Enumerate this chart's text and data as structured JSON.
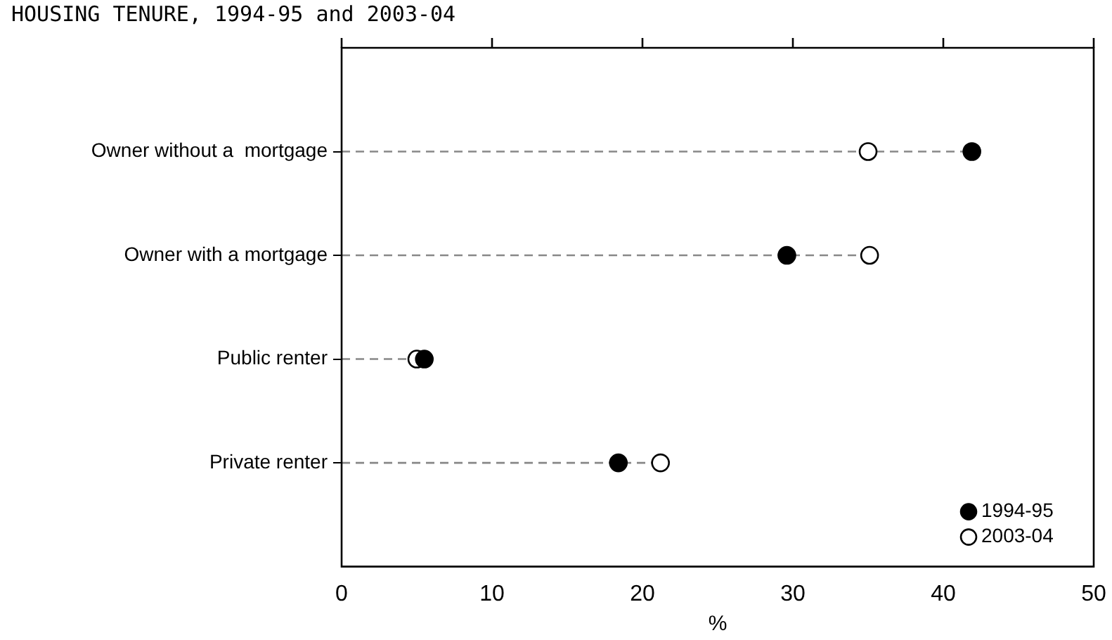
{
  "chart_data": {
    "type": "lollipop",
    "orientation": "horizontal",
    "title": "HOUSING TENURE, 1994-95 and 2003-04",
    "xlabel": "%",
    "categories": [
      "Owner without a  mortgage",
      "Owner with a mortgage",
      "Public renter",
      "Private renter"
    ],
    "series": [
      {
        "name": "1994-95",
        "color": "#000000",
        "values": [
          41.9,
          29.6,
          5.5,
          18.4
        ]
      },
      {
        "name": "2003-04",
        "color": "#ffffff",
        "values": [
          35.0,
          35.1,
          5.0,
          21.2
        ]
      }
    ],
    "xlim": [
      0,
      50
    ],
    "xticks": [
      0,
      10,
      20,
      30,
      40,
      50
    ],
    "grid": false,
    "legend": "bottom right",
    "marker": "circle",
    "line_style": "dashed"
  }
}
